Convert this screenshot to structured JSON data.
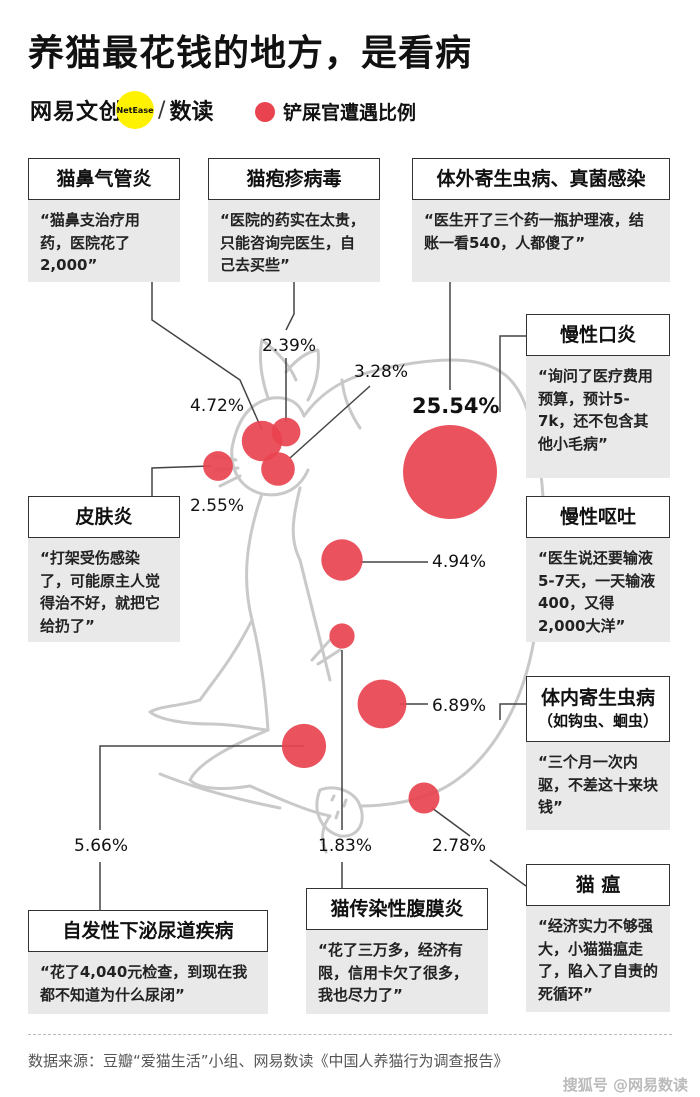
{
  "title": "养猫最花钱的地方，是看病",
  "brand": {
    "name": "网易文创",
    "badge": "NetEase",
    "sub": "数读"
  },
  "legend": {
    "label": "铲屎官遭遇比例",
    "color": "#e8434f"
  },
  "colors": {
    "bubble": "#e8434f",
    "quote_bg": "#e9e9e9",
    "cat_line": "#c9c9c9",
    "leader": "#444444"
  },
  "chart_data": {
    "type": "bubble",
    "title": "养猫最花钱的地方，是看病",
    "legend": "铲屎官遭遇比例",
    "series": [
      {
        "disease": "猫鼻气管炎",
        "percent": 4.72,
        "label": "4.72%",
        "quote": "“猫鼻支治疗用药，医院花了2,000”"
      },
      {
        "disease": "猫疱疹病毒",
        "percent": 2.39,
        "label": "2.39%",
        "quote": "“医院的药实在太贵，只能咨询完医生，自己去买些”"
      },
      {
        "disease": "体外寄生虫病、真菌感染",
        "percent": 25.54,
        "label": "25.54%",
        "quote": "“医生开了三个药一瓶护理液，结账一看540，人都傻了”"
      },
      {
        "disease": "慢性口炎",
        "percent": 3.28,
        "label": "3.28%",
        "quote": "“询问了医疗费用预算，预计5-7k，还不包含其他小毛病”"
      },
      {
        "disease": "皮肤炎",
        "percent": 2.55,
        "label": "2.55%",
        "quote": "“打架受伤感染了，可能原主人觉得治不好，就把它给扔了”"
      },
      {
        "disease": "慢性呕吐",
        "percent": 4.94,
        "label": "4.94%",
        "quote": "“医生说还要输液5-7天，一天输液400，又得2,000大洋”"
      },
      {
        "disease": "体内寄生虫病",
        "sub": "（如钩虫、蛔虫）",
        "percent": 6.89,
        "label": "6.89%",
        "quote": "“三个月一次内驱，不差这十来块钱”"
      },
      {
        "disease": "自发性下泌尿道疾病",
        "percent": 5.66,
        "label": "5.66%",
        "quote": "“花了4,040元检查，到现在我都不知道为什么尿闭”"
      },
      {
        "disease": "猫传染性腹膜炎",
        "percent": 1.83,
        "label": "1.83%",
        "quote": "“花了三万多，经济有限，信用卡欠了很多，我也尽力了”"
      },
      {
        "disease": "猫 瘟",
        "percent": 2.78,
        "label": "2.78%",
        "quote": "“经济实力不够强大，小猫猫瘟走了，陷入了自责的死循环”"
      }
    ]
  },
  "source": "数据来源：豆瓣“爱猫生活”小组、网易数读《中国人养猫行为调查报告》",
  "watermark": "搜狐号 @网易数读"
}
